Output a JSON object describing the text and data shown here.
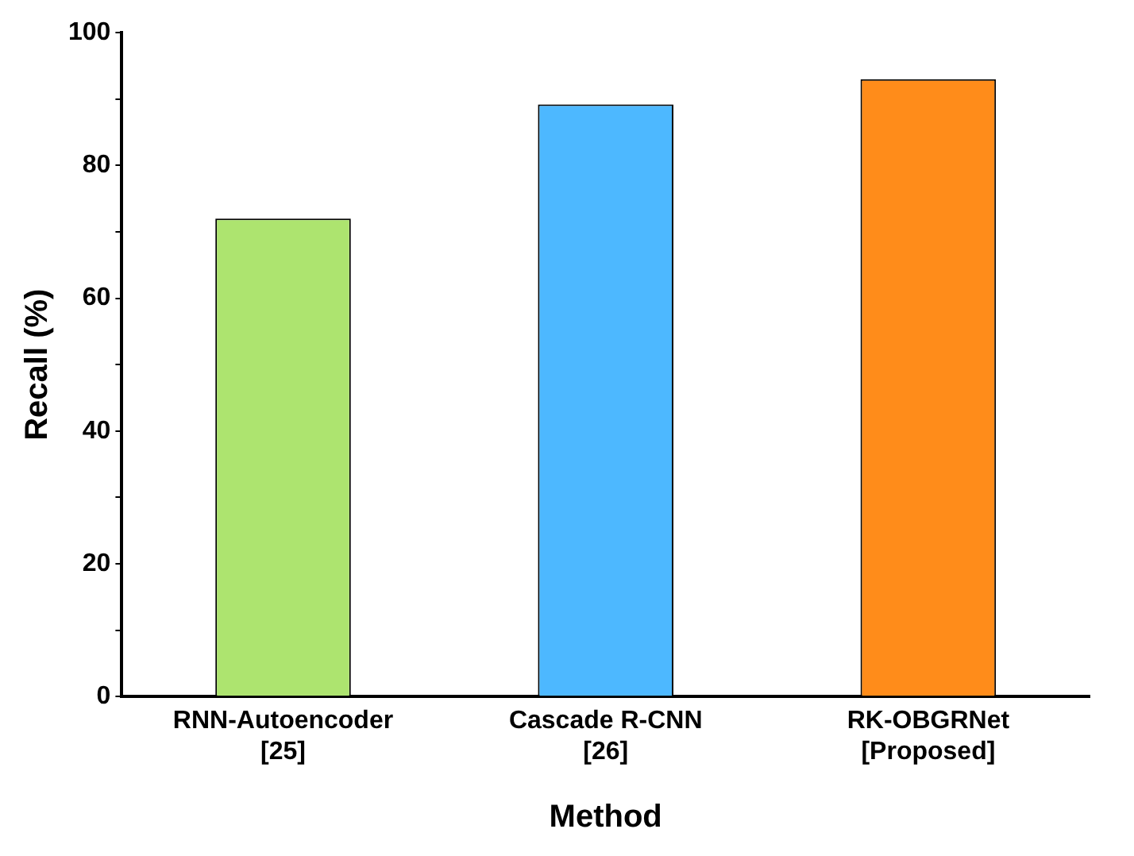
{
  "chart_data": {
    "type": "bar",
    "xlabel": "Method",
    "ylabel": "Recall (%)",
    "categories": [
      "RNN-Autoencoder\n[25]",
      "Cascade R-CNN\n[26]",
      "RK-OBGRNet\n[Proposed]"
    ],
    "values": [
      72,
      89.2,
      93
    ],
    "colors": [
      "#ade46f",
      "#4db8ff",
      "#ff8c1a"
    ],
    "ylim": [
      0,
      100
    ],
    "yticks": [
      0,
      {
        "value": 10,
        "label": null
      },
      20,
      {
        "value": 30,
        "label": null
      },
      40,
      {
        "value": 50,
        "label": null
      },
      60,
      {
        "value": 70,
        "label": null
      },
      80,
      {
        "value": 90,
        "label": null
      },
      100
    ],
    "grid": false,
    "legend": false
  }
}
